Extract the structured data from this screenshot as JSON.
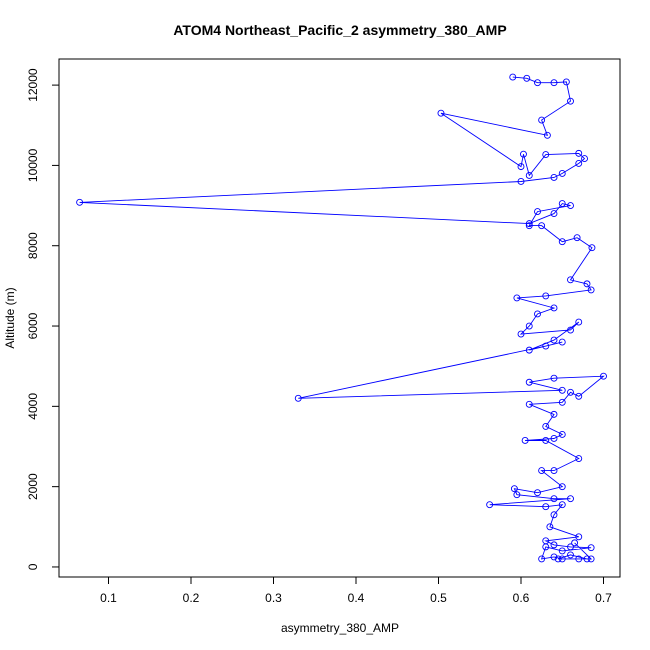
{
  "chart_data": {
    "type": "line",
    "title": "ATOM4 Northeast_Pacific_2 asymmetry_380_AMP",
    "xlabel": "asymmetry_380_AMP",
    "ylabel": "Altitude (m)",
    "xlim": [
      0.04,
      0.72
    ],
    "ylim": [
      -250,
      12650
    ],
    "xticks": [
      0.1,
      0.2,
      0.3,
      0.4,
      0.5,
      0.6,
      0.7
    ],
    "xtick_labels": [
      "0.1",
      "0.2",
      "0.3",
      "0.4",
      "0.5",
      "0.6",
      "0.7"
    ],
    "yticks": [
      0,
      2000,
      4000,
      6000,
      8000,
      10000,
      12000
    ],
    "ytick_labels": [
      "0",
      "2000",
      "4000",
      "6000",
      "8000",
      "10000",
      "12000"
    ],
    "grid": false,
    "colors": {
      "series": "#0000ff",
      "axis": "#000000",
      "background": "#ffffff"
    },
    "series": [
      {
        "marker": "open-circle",
        "points": [
          [
            0.59,
            12200
          ],
          [
            0.607,
            12170
          ],
          [
            0.62,
            12060
          ],
          [
            0.64,
            12060
          ],
          [
            0.655,
            12080
          ],
          [
            0.66,
            11600
          ],
          [
            0.625,
            11130
          ],
          [
            0.632,
            10750
          ],
          [
            0.503,
            11300
          ],
          [
            0.6,
            9970
          ],
          [
            0.603,
            10280
          ],
          [
            0.61,
            9750
          ],
          [
            0.63,
            10270
          ],
          [
            0.67,
            10300
          ],
          [
            0.677,
            10170
          ],
          [
            0.67,
            10050
          ],
          [
            0.65,
            9800
          ],
          [
            0.64,
            9700
          ],
          [
            0.6,
            9600
          ],
          [
            0.065,
            9080
          ],
          [
            0.61,
            8550
          ],
          [
            0.64,
            8800
          ],
          [
            0.65,
            9050
          ],
          [
            0.66,
            9000
          ],
          [
            0.62,
            8850
          ],
          [
            0.61,
            8500
          ],
          [
            0.625,
            8500
          ],
          [
            0.65,
            8100
          ],
          [
            0.668,
            8200
          ],
          [
            0.686,
            7950
          ],
          [
            0.66,
            7150
          ],
          [
            0.68,
            7050
          ],
          [
            0.685,
            6900
          ],
          [
            0.63,
            6750
          ],
          [
            0.595,
            6700
          ],
          [
            0.64,
            6450
          ],
          [
            0.62,
            6300
          ],
          [
            0.61,
            6000
          ],
          [
            0.6,
            5800
          ],
          [
            0.66,
            5900
          ],
          [
            0.67,
            6100
          ],
          [
            0.64,
            5650
          ],
          [
            0.61,
            5400
          ],
          [
            0.65,
            5600
          ],
          [
            0.63,
            5500
          ],
          [
            0.33,
            4200
          ],
          [
            0.65,
            4400
          ],
          [
            0.61,
            4600
          ],
          [
            0.64,
            4700
          ],
          [
            0.7,
            4750
          ],
          [
            0.67,
            4250
          ],
          [
            0.66,
            4350
          ],
          [
            0.65,
            4100
          ],
          [
            0.61,
            4050
          ],
          [
            0.64,
            3800
          ],
          [
            0.63,
            3500
          ],
          [
            0.65,
            3300
          ],
          [
            0.64,
            3200
          ],
          [
            0.605,
            3150
          ],
          [
            0.63,
            3150
          ],
          [
            0.67,
            2700
          ],
          [
            0.64,
            2400
          ],
          [
            0.625,
            2400
          ],
          [
            0.65,
            2000
          ],
          [
            0.62,
            1850
          ],
          [
            0.592,
            1950
          ],
          [
            0.595,
            1800
          ],
          [
            0.64,
            1700
          ],
          [
            0.66,
            1700
          ],
          [
            0.562,
            1550
          ],
          [
            0.63,
            1500
          ],
          [
            0.65,
            1550
          ],
          [
            0.64,
            1300
          ],
          [
            0.635,
            1000
          ],
          [
            0.67,
            750
          ],
          [
            0.63,
            650
          ],
          [
            0.64,
            550
          ],
          [
            0.66,
            500
          ],
          [
            0.685,
            480
          ],
          [
            0.65,
            400
          ],
          [
            0.63,
            500
          ],
          [
            0.625,
            200
          ],
          [
            0.64,
            250
          ],
          [
            0.65,
            200
          ],
          [
            0.67,
            200
          ],
          [
            0.68,
            200
          ],
          [
            0.66,
            300
          ],
          [
            0.645,
            200
          ],
          [
            0.685,
            200
          ],
          [
            0.665,
            600
          ]
        ]
      }
    ]
  }
}
